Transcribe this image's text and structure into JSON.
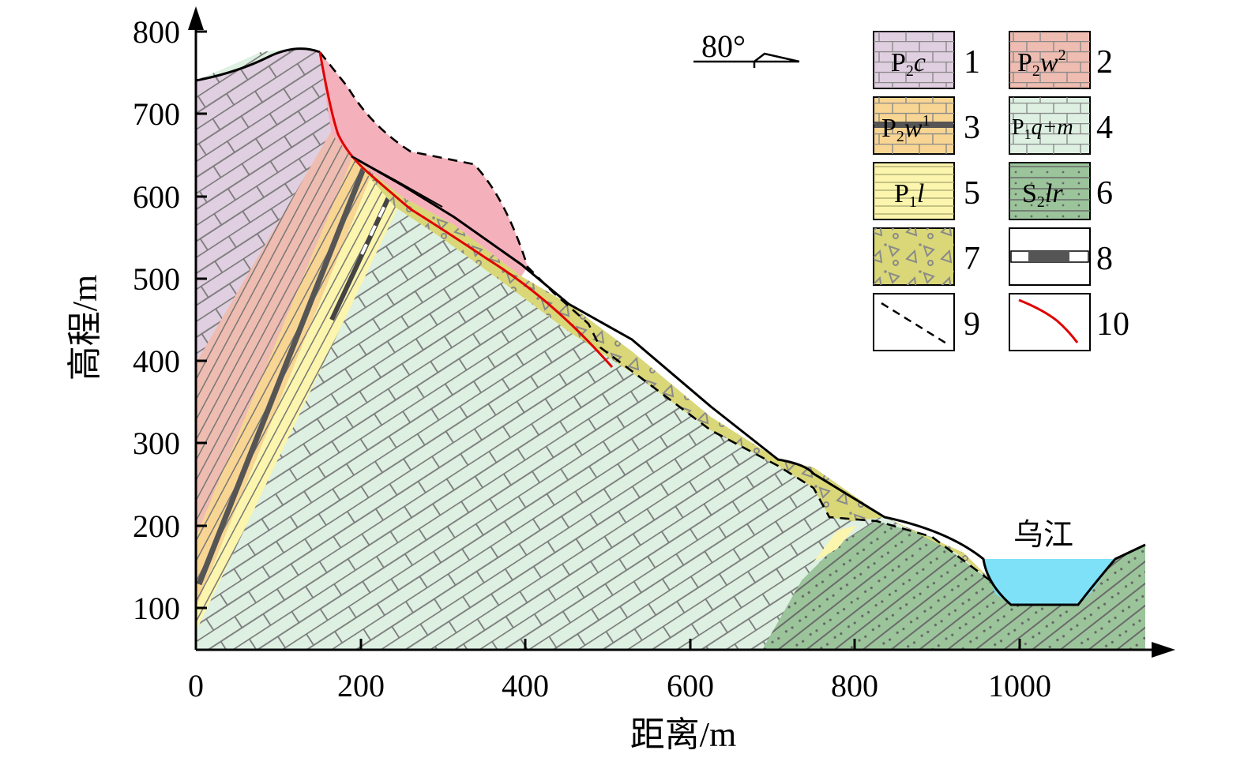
{
  "axes": {
    "x_label": "距离/m",
    "y_label": "高程/m",
    "x_ticks": [
      "0",
      "200",
      "400",
      "600",
      "800",
      "1000"
    ],
    "y_ticks": [
      "100",
      "200",
      "300",
      "400",
      "500",
      "600",
      "700",
      "800"
    ]
  },
  "annotations": {
    "dip": "80°",
    "river": "乌江"
  },
  "legend": [
    {
      "num": "1",
      "code": "P",
      "sub": "2",
      "rest": "c"
    },
    {
      "num": "2",
      "code": "P",
      "sub": "2",
      "rest": "w",
      "sup": "2"
    },
    {
      "num": "3",
      "code": "P",
      "sub": "2",
      "rest": "w",
      "sup": "1"
    },
    {
      "num": "4",
      "code": "P",
      "sub": "1",
      "rest": "q+m"
    },
    {
      "num": "5",
      "code": "P",
      "sub": "1",
      "rest": "l"
    },
    {
      "num": "6",
      "code": "S",
      "sub": "2",
      "rest": "lr"
    },
    {
      "num": "7"
    },
    {
      "num": "8"
    },
    {
      "num": "9"
    },
    {
      "num": "10"
    }
  ],
  "colors": {
    "p2c": "#e0cfe0",
    "p2w2": "#eebcb0",
    "p2w1": "#f8d592",
    "p1qm": "#ddf0e2",
    "p1l": "#fbf5ad",
    "s2lr": "#9bc49b",
    "debris": "#d9d777",
    "slide": "#f5b1bb",
    "river": "#7ee1f8",
    "fault": "#e00000"
  }
}
